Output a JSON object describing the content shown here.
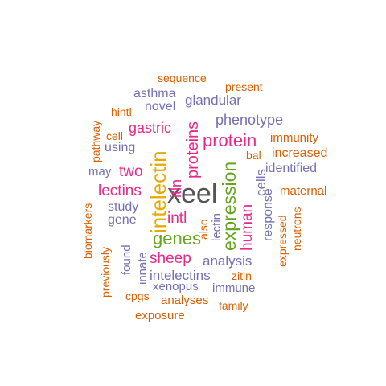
{
  "colors": {
    "orange": "#d95f02",
    "purple": "#7570b3",
    "magenta": "#e7298a",
    "green": "#66a61e",
    "gold": "#e6ab02",
    "gray": "#555555"
  },
  "words": {
    "xeel": "xeel",
    "intelectin": "intelectin",
    "expression": "expression",
    "protein": "protein",
    "proteins": "proteins",
    "genes": "genes",
    "lectins": "lectins",
    "sheep": "sheep",
    "two": "two",
    "gastric": "gastric",
    "intl": "intl",
    "human": "human",
    "itln": "itln",
    "phenotype": "phenotype",
    "analysis": "analysis",
    "intelectins": "intelectins",
    "glandular": "glandular",
    "asthma": "asthma",
    "novel": "novel",
    "sequence": "sequence",
    "present": "present",
    "hintl": "hintl",
    "cell": "cell",
    "using": "using",
    "may": "may",
    "study": "study",
    "gene": "gene",
    "immunity": "immunity",
    "increased": "increased",
    "identified": "identified",
    "maternal": "maternal",
    "bal": "bal",
    "cells": "cells",
    "response": "response",
    "lectin": "lectin",
    "also": "also",
    "xenopus": "xenopus",
    "immune": "immune",
    "zitln": "zitln",
    "family": "family",
    "analyses": "analyses",
    "exposure": "exposure",
    "cpgs": "cpgs",
    "innate": "innate",
    "found": "found",
    "previously": "previously",
    "biomarkers": "biomarkers",
    "pathway": "pathway",
    "expressed": "expressed",
    "neutrons": "neutrons"
  }
}
